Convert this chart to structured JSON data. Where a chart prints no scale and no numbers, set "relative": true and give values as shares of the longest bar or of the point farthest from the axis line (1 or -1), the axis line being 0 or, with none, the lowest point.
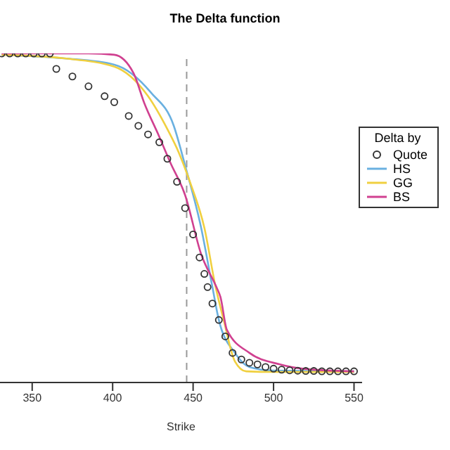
{
  "chart_data": {
    "type": "line",
    "title": "The Delta function",
    "xlabel": "Strike",
    "relative": true,
    "xlim": [
      330,
      555
    ],
    "xticks": [
      350,
      400,
      450,
      500,
      550
    ],
    "legend": "right",
    "legend_title": "Delta by",
    "ref_lines": [
      {
        "axis": "x",
        "value": 446,
        "color": "#999999",
        "line_style": "dashed"
      }
    ],
    "series": [
      {
        "name": "Quote",
        "type": "scatter",
        "marker": "circle",
        "color": "#333333",
        "x": [
          331,
          336,
          341,
          346,
          351,
          356,
          361,
          365,
          375,
          385,
          395,
          401,
          410,
          416,
          422,
          429,
          434,
          440,
          445,
          450,
          454,
          457,
          459,
          462,
          466,
          470,
          474.5,
          480,
          485,
          490,
          495,
          500,
          505,
          510,
          515,
          520,
          525,
          530,
          535,
          540,
          545,
          550
        ],
        "values": [
          1,
          1,
          1,
          1,
          1,
          1,
          1,
          0.953,
          0.93,
          0.9,
          0.87,
          0.852,
          0.81,
          0.78,
          0.754,
          0.73,
          0.68,
          0.61,
          0.53,
          0.45,
          0.38,
          0.33,
          0.29,
          0.24,
          0.19,
          0.14,
          0.09,
          0.07,
          0.06,
          0.055,
          0.047,
          0.042,
          0.039,
          0.037,
          0.036,
          0.035,
          0.035,
          0.034,
          0.034,
          0.034,
          0.034,
          0.034
        ]
      },
      {
        "name": "HS",
        "color": "#6ab0e0",
        "x": [
          331,
          370,
          401,
          424,
          438,
          445,
          455,
          462,
          466,
          476,
          485,
          500,
          550
        ],
        "values": [
          0.996,
          0.985,
          0.966,
          0.88,
          0.78,
          0.66,
          0.47,
          0.29,
          0.19,
          0.09,
          0.047,
          0.036,
          0.034
        ]
      },
      {
        "name": "GG",
        "color": "#f0d040",
        "x": [
          331,
          370,
          401,
          422,
          434,
          441,
          448,
          457,
          464,
          469,
          476,
          483,
          500,
          550
        ],
        "values": [
          0.996,
          0.985,
          0.96,
          0.87,
          0.77,
          0.7,
          0.61,
          0.47,
          0.29,
          0.19,
          0.064,
          0.034,
          0.032,
          0.032
        ]
      },
      {
        "name": "BS",
        "color": "#d04090",
        "x": [
          331,
          385,
          401,
          413,
          419.6,
          428.7,
          435.7,
          445,
          455,
          464.5,
          467,
          471,
          485,
          504,
          518,
          550
        ],
        "values": [
          1,
          1,
          0.996,
          0.94,
          0.85,
          0.75,
          0.67,
          0.57,
          0.39,
          0.29,
          0.26,
          0.16,
          0.09,
          0.055,
          0.042,
          0.034
        ]
      }
    ]
  }
}
